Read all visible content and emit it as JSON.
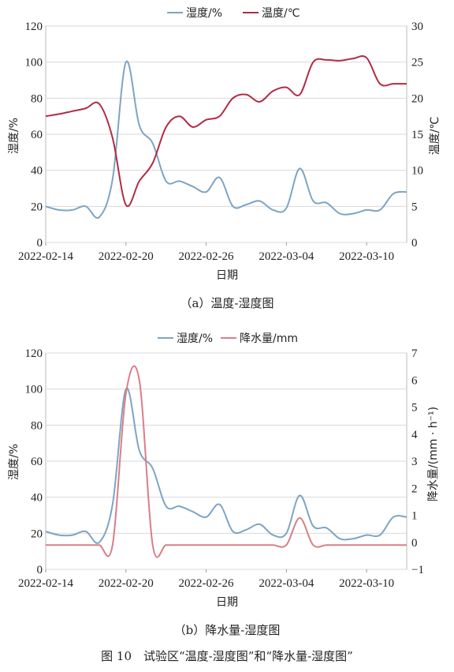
{
  "figure_caption": "图 10　试验区“温度-湿度图”和“降水量-湿度图”",
  "chart_data": [
    {
      "type": "line",
      "caption": "（a）温度-湿度图",
      "xlabel": "日期",
      "x": [
        "2022-02-14",
        "2022-02-15",
        "2022-02-16",
        "2022-02-17",
        "2022-02-18",
        "2022-02-19",
        "2022-02-20",
        "2022-02-21",
        "2022-02-22",
        "2022-02-23",
        "2022-02-24",
        "2022-02-25",
        "2022-02-26",
        "2022-02-27",
        "2022-02-28",
        "2022-03-01",
        "2022-03-02",
        "2022-03-03",
        "2022-03-04",
        "2022-03-05",
        "2022-03-06",
        "2022-03-07",
        "2022-03-08",
        "2022-03-09",
        "2022-03-10",
        "2022-03-11",
        "2022-03-12",
        "2022-03-13"
      ],
      "xticks": [
        "2022-02-14",
        "2022-02-20",
        "2022-02-26",
        "2022-03-04",
        "2022-03-10"
      ],
      "left_axis": {
        "label": "湿度/%",
        "ticks": [
          "0",
          "20",
          "40",
          "60",
          "80",
          "100",
          "120"
        ],
        "range": [
          0,
          120
        ]
      },
      "right_axis": {
        "label": "温度/℃",
        "ticks": [
          "0",
          "5",
          "10",
          "15",
          "20",
          "25",
          "30"
        ],
        "range": [
          0,
          30
        ]
      },
      "series": [
        {
          "name": "湿度/%",
          "axis": "left",
          "color": "#7ea4c4",
          "values": [
            20,
            18,
            18,
            20,
            14,
            35,
            100,
            65,
            55,
            34,
            34,
            31,
            28,
            36,
            20,
            21,
            23,
            18,
            19,
            41,
            23,
            22,
            16,
            16,
            18,
            18,
            27,
            28
          ]
        },
        {
          "name": "温度/℃",
          "axis": "right",
          "color": "#b02c45",
          "values": [
            17.5,
            17.8,
            18.2,
            18.6,
            19.2,
            14.5,
            5.2,
            8.5,
            11,
            16,
            17.5,
            16,
            17,
            17.5,
            20,
            20.5,
            19.5,
            21,
            21.5,
            20.5,
            25,
            25.3,
            25.2,
            25.5,
            25.6,
            22,
            22,
            22
          ]
        }
      ],
      "legend_position": "top-center"
    },
    {
      "type": "line",
      "caption": "（b）降水量-湿度图",
      "xlabel": "日期",
      "x": [
        "2022-02-14",
        "2022-02-15",
        "2022-02-16",
        "2022-02-17",
        "2022-02-18",
        "2022-02-19",
        "2022-02-20",
        "2022-02-21",
        "2022-02-22",
        "2022-02-23",
        "2022-02-24",
        "2022-02-25",
        "2022-02-26",
        "2022-02-27",
        "2022-02-28",
        "2022-03-01",
        "2022-03-02",
        "2022-03-03",
        "2022-03-04",
        "2022-03-05",
        "2022-03-06",
        "2022-03-07",
        "2022-03-08",
        "2022-03-09",
        "2022-03-10",
        "2022-03-11",
        "2022-03-12",
        "2022-03-13"
      ],
      "xticks": [
        "2022-02-14",
        "2022-02-20",
        "2022-02-26",
        "2022-03-04",
        "2022-03-10"
      ],
      "left_axis": {
        "label": "湿度/%",
        "ticks": [
          "0",
          "20",
          "40",
          "60",
          "80",
          "100",
          "120"
        ],
        "range": [
          0,
          120
        ]
      },
      "right_axis": {
        "label": "降水量/(mm · h⁻¹)",
        "ticks": [
          "−1",
          "0",
          "1",
          "2",
          "3",
          "4",
          "5",
          "6",
          "7"
        ],
        "range": [
          -1,
          7
        ]
      },
      "series": [
        {
          "name": "湿度/%",
          "axis": "left",
          "color": "#7ea4c4",
          "values": [
            21,
            19,
            19,
            21,
            15,
            36,
            100,
            66,
            56,
            35,
            35,
            32,
            29,
            36,
            21,
            22,
            25,
            19,
            20,
            41,
            24,
            23,
            17,
            17,
            19,
            19,
            29,
            29
          ]
        },
        {
          "name": "降水量/mm",
          "axis": "right",
          "color": "#d87f88",
          "values": [
            -0.1,
            -0.1,
            -0.1,
            -0.1,
            -0.1,
            -0.1,
            5.5,
            6,
            -0.1,
            -0.1,
            -0.1,
            -0.1,
            -0.1,
            -0.1,
            -0.1,
            -0.1,
            -0.1,
            -0.1,
            -0.1,
            0.9,
            -0.1,
            -0.1,
            -0.1,
            -0.1,
            -0.1,
            -0.1,
            -0.1,
            -0.1
          ]
        }
      ],
      "legend_position": "top-center"
    }
  ]
}
